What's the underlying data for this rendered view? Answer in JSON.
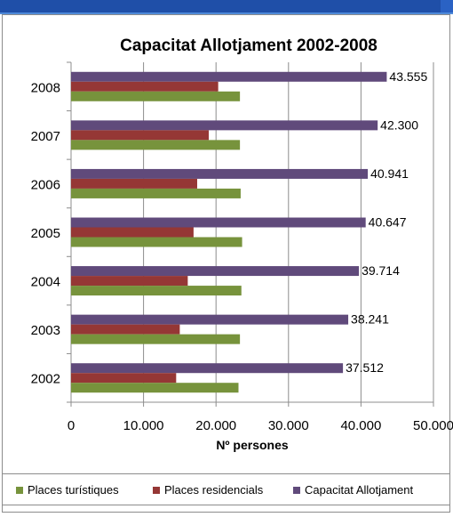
{
  "chart_data": {
    "type": "bar",
    "orientation": "horizontal",
    "title": "Capacitat Allotjament 2002-2008",
    "xlabel": "Nº persones",
    "ylabel": "",
    "xlim": [
      0,
      50000
    ],
    "x_ticks": [
      "0",
      "10.000",
      "20.000",
      "30.000",
      "40.000",
      "50.000"
    ],
    "categories": [
      "2002",
      "2003",
      "2004",
      "2005",
      "2006",
      "2007",
      "2008"
    ],
    "series": [
      {
        "name": "Places turístiques",
        "color": "#77933c",
        "values": [
          23100,
          23300,
          23500,
          23600,
          23400,
          23300,
          23300
        ]
      },
      {
        "name": "Places residencials",
        "color": "#953735",
        "values": [
          14500,
          15000,
          16100,
          16900,
          17400,
          19000,
          20300
        ]
      },
      {
        "name": "Capacitat Allotjament",
        "color": "#604a7b",
        "values": [
          37512,
          38241,
          39714,
          40647,
          40941,
          42300,
          43555
        ],
        "labels": [
          "37.512",
          "38.241",
          "39.714",
          "40.647",
          "40.941",
          "42.300",
          "43.555"
        ]
      }
    ],
    "grid": true,
    "legend": "bottom"
  }
}
